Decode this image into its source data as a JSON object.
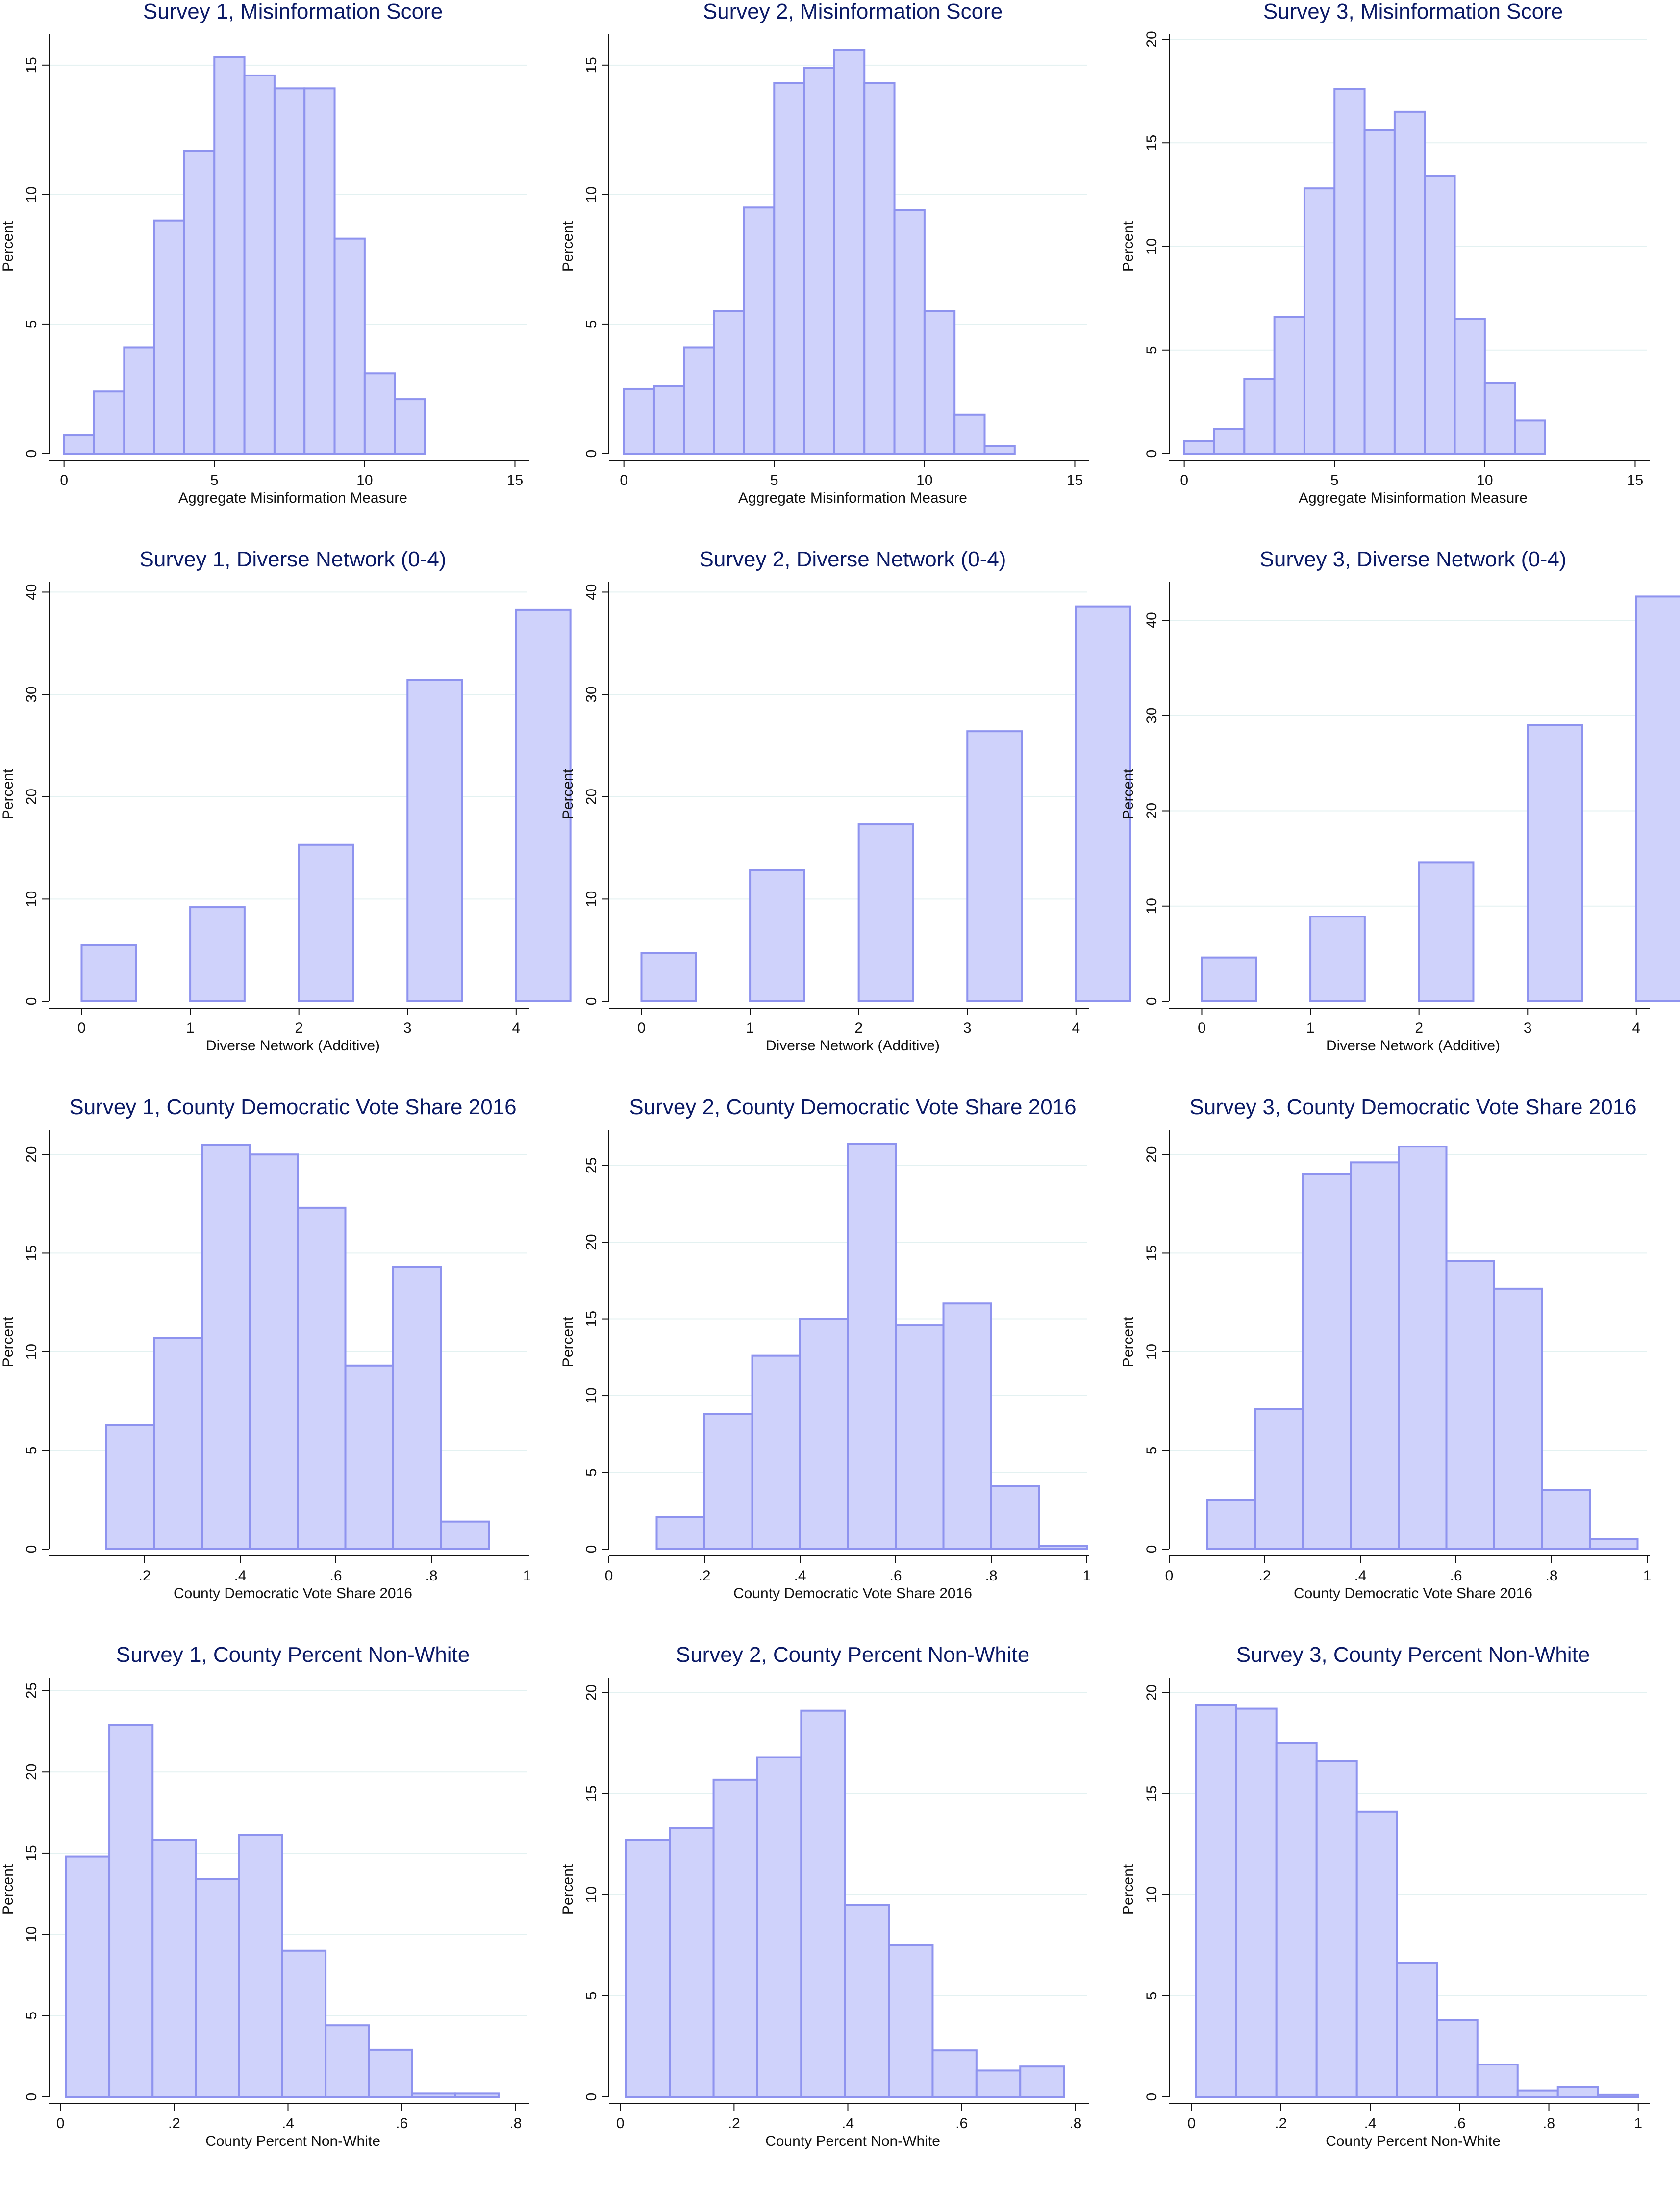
{
  "chart_data": [
    {
      "id": "s1-mis",
      "type": "bar",
      "title": "Survey 1, Misinformation Score",
      "xlabel": "Aggregate Misinformation Measure",
      "ylabel": "Percent",
      "xlim": [
        -0.5,
        15.4
      ],
      "ylim": [
        0,
        16
      ],
      "xticks": [
        0,
        5,
        10,
        15
      ],
      "xtick_labels": [
        "0",
        "5",
        "10",
        "15"
      ],
      "yticks": [
        0,
        5,
        10,
        15
      ],
      "ytick_labels": [
        "0",
        "5",
        "10",
        "15"
      ],
      "bin_edges": [
        0,
        1,
        2,
        3,
        4,
        5,
        6,
        7,
        8,
        9,
        10,
        11,
        12
      ],
      "values": [
        0.7,
        2.4,
        4.1,
        9.0,
        11.7,
        15.3,
        14.6,
        14.1,
        14.1,
        8.3,
        3.1,
        2.1
      ]
    },
    {
      "id": "s2-mis",
      "type": "bar",
      "title": "Survey 2, Misinformation Score",
      "xlabel": "Aggregate Misinformation Measure",
      "ylabel": "Percent",
      "xlim": [
        -0.5,
        15.4
      ],
      "ylim": [
        0,
        16
      ],
      "xticks": [
        0,
        5,
        10,
        15
      ],
      "xtick_labels": [
        "0",
        "5",
        "10",
        "15"
      ],
      "yticks": [
        0,
        5,
        10,
        15
      ],
      "ytick_labels": [
        "0",
        "5",
        "10",
        "15"
      ],
      "bin_edges": [
        0,
        1,
        2,
        3,
        4,
        5,
        6,
        7,
        8,
        9,
        10,
        11,
        12,
        13
      ],
      "values": [
        2.5,
        2.6,
        4.1,
        5.5,
        9.5,
        14.3,
        14.9,
        15.6,
        14.3,
        9.4,
        5.5,
        1.5,
        0.3
      ]
    },
    {
      "id": "s3-mis",
      "type": "bar",
      "title": "Survey 3, Misinformation Score",
      "xlabel": "Aggregate Misinformation Measure",
      "ylabel": "Percent",
      "xlim": [
        -0.5,
        15.4
      ],
      "ylim": [
        0,
        20
      ],
      "xticks": [
        0,
        5,
        10,
        15
      ],
      "xtick_labels": [
        "0",
        "5",
        "10",
        "15"
      ],
      "yticks": [
        0,
        5,
        10,
        15,
        20
      ],
      "ytick_labels": [
        "0",
        "5",
        "10",
        "15",
        "20"
      ],
      "bin_edges": [
        0,
        1,
        2,
        3,
        4,
        5,
        6,
        7,
        8,
        9,
        10,
        11,
        12
      ],
      "values": [
        0.6,
        1.2,
        3.6,
        6.6,
        12.8,
        17.6,
        15.6,
        16.5,
        13.4,
        6.5,
        3.4,
        1.6
      ]
    },
    {
      "id": "s1-net",
      "type": "bar",
      "title": "Survey 1, Diverse Network (0-4)",
      "xlabel": "Diverse Network (Additive)",
      "ylabel": "Percent",
      "xlim": [
        -0.3,
        4.1
      ],
      "ylim": [
        0,
        40.5
      ],
      "xticks": [
        0,
        1,
        2,
        3,
        4
      ],
      "xtick_labels": [
        "0",
        "1",
        "2",
        "3",
        "4"
      ],
      "yticks": [
        0,
        10,
        20,
        30,
        40
      ],
      "ytick_labels": [
        "0",
        "10",
        "20",
        "30",
        "40"
      ],
      "bars": [
        {
          "x0": 0,
          "x1": 0.5,
          "v": 5.5
        },
        {
          "x0": 1,
          "x1": 1.5,
          "v": 9.2
        },
        {
          "x0": 2,
          "x1": 2.5,
          "v": 15.3
        },
        {
          "x0": 3,
          "x1": 3.5,
          "v": 31.4
        },
        {
          "x0": 4,
          "x1": 4.5,
          "v": 38.3
        }
      ]
    },
    {
      "id": "s2-net",
      "type": "bar",
      "title": "Survey 2, Diverse Network (0-4)",
      "xlabel": "Diverse Network (Additive)",
      "ylabel": "Percent",
      "xlim": [
        -0.3,
        4.1
      ],
      "ylim": [
        0,
        40.5
      ],
      "xticks": [
        0,
        1,
        2,
        3,
        4
      ],
      "xtick_labels": [
        "0",
        "1",
        "2",
        "3",
        "4"
      ],
      "yticks": [
        0,
        10,
        20,
        30,
        40
      ],
      "ytick_labels": [
        "0",
        "10",
        "20",
        "30",
        "40"
      ],
      "bars": [
        {
          "x0": 0,
          "x1": 0.5,
          "v": 4.7
        },
        {
          "x0": 1,
          "x1": 1.5,
          "v": 12.8
        },
        {
          "x0": 2,
          "x1": 2.5,
          "v": 17.3
        },
        {
          "x0": 3,
          "x1": 3.5,
          "v": 26.4
        },
        {
          "x0": 4,
          "x1": 4.5,
          "v": 38.6
        }
      ]
    },
    {
      "id": "s3-net",
      "type": "bar",
      "title": "Survey 3, Diverse Network (0-4)",
      "xlabel": "Diverse Network (Additive)",
      "ylabel": "Percent",
      "xlim": [
        -0.3,
        4.1
      ],
      "ylim": [
        0,
        43.5
      ],
      "xticks": [
        0,
        1,
        2,
        3,
        4
      ],
      "xtick_labels": [
        "0",
        "1",
        "2",
        "3",
        "4"
      ],
      "yticks": [
        0,
        10,
        20,
        30,
        40
      ],
      "ytick_labels": [
        "0",
        "10",
        "20",
        "30",
        "40"
      ],
      "bars": [
        {
          "x0": 0,
          "x1": 0.5,
          "v": 4.6
        },
        {
          "x0": 1,
          "x1": 1.5,
          "v": 8.9
        },
        {
          "x0": 2,
          "x1": 2.5,
          "v": 14.6
        },
        {
          "x0": 3,
          "x1": 3.5,
          "v": 29.0
        },
        {
          "x0": 4,
          "x1": 4.5,
          "v": 42.5
        }
      ]
    },
    {
      "id": "s1-dem",
      "type": "bar",
      "title": "Survey 1, County Democratic Vote Share 2016",
      "xlabel": "County Democratic Vote Share 2016",
      "ylabel": "Percent",
      "xlim": [
        0,
        1.0
      ],
      "ylim": [
        0,
        21
      ],
      "xticks": [
        0.2,
        0.4,
        0.6,
        0.8,
        1.0
      ],
      "xtick_labels": [
        ".2",
        ".4",
        ".6",
        ".8",
        "1"
      ],
      "yticks": [
        0,
        5,
        10,
        15,
        20
      ],
      "ytick_labels": [
        "0",
        "5",
        "10",
        "15",
        "20"
      ],
      "bin_edges": [
        0.12,
        0.22,
        0.32,
        0.42,
        0.52,
        0.62,
        0.72,
        0.82,
        0.92
      ],
      "values": [
        6.3,
        10.7,
        20.5,
        20.0,
        17.3,
        9.3,
        14.3,
        1.4
      ]
    },
    {
      "id": "s2-dem",
      "type": "bar",
      "title": "Survey 2, County Democratic Vote Share 2016",
      "xlabel": "County Democratic Vote Share 2016",
      "ylabel": "Percent",
      "xlim": [
        0,
        1.0
      ],
      "ylim": [
        0,
        27
      ],
      "xticks": [
        0,
        0.2,
        0.4,
        0.6,
        0.8,
        1.0
      ],
      "xtick_labels": [
        "0",
        ".2",
        ".4",
        ".6",
        ".8",
        "1"
      ],
      "yticks": [
        0,
        5,
        10,
        15,
        20,
        25
      ],
      "ytick_labels": [
        "0",
        "5",
        "10",
        "15",
        "20",
        "25"
      ],
      "bin_edges": [
        0.1,
        0.2,
        0.3,
        0.4,
        0.5,
        0.6,
        0.7,
        0.8,
        0.9,
        1.0
      ],
      "values": [
        2.1,
        8.8,
        12.6,
        15.0,
        26.4,
        14.6,
        16.0,
        4.1,
        0.2
      ]
    },
    {
      "id": "s3-dem",
      "type": "bar",
      "title": "Survey 3, County Democratic Vote Share 2016",
      "xlabel": "County Democratic Vote Share 2016",
      "ylabel": "Percent",
      "xlim": [
        0,
        1.0
      ],
      "ylim": [
        0,
        21
      ],
      "xticks": [
        0,
        0.2,
        0.4,
        0.6,
        0.8,
        1.0
      ],
      "xtick_labels": [
        "0",
        ".2",
        ".4",
        ".6",
        ".8",
        "1"
      ],
      "yticks": [
        0,
        5,
        10,
        15,
        20
      ],
      "ytick_labels": [
        "0",
        "5",
        "10",
        "15",
        "20"
      ],
      "bin_edges": [
        0.08,
        0.18,
        0.28,
        0.38,
        0.48,
        0.58,
        0.68,
        0.78,
        0.88,
        0.98
      ],
      "values": [
        2.5,
        7.1,
        19.0,
        19.6,
        20.4,
        14.6,
        13.2,
        3.0,
        0.5
      ]
    },
    {
      "id": "s1-nw",
      "type": "bar",
      "title": "Survey 1, County Percent Non-White",
      "xlabel": "County Percent Non-White",
      "ylabel": "Percent",
      "xlim": [
        -0.02,
        0.82
      ],
      "ylim": [
        0,
        25.5
      ],
      "xticks": [
        0,
        0.2,
        0.4,
        0.6,
        0.8
      ],
      "xtick_labels": [
        "0",
        ".2",
        ".4",
        ".6",
        ".8"
      ],
      "yticks": [
        0,
        5,
        10,
        15,
        20,
        25
      ],
      "ytick_labels": [
        "0",
        "5",
        "10",
        "15",
        "20",
        "25"
      ],
      "bin_edges": [
        0.01,
        0.086,
        0.162,
        0.238,
        0.314,
        0.39,
        0.466,
        0.542,
        0.618,
        0.694,
        0.77
      ],
      "values": [
        14.8,
        22.9,
        15.8,
        13.4,
        16.1,
        9.0,
        4.4,
        2.9,
        0.2,
        0.2
      ]
    },
    {
      "id": "s2-nw",
      "type": "bar",
      "title": "Survey 2, County Percent Non-White",
      "xlabel": "County Percent Non-White",
      "ylabel": "Percent",
      "xlim": [
        -0.02,
        0.82
      ],
      "ylim": [
        0,
        20.5
      ],
      "xticks": [
        0,
        0.2,
        0.4,
        0.6,
        0.8
      ],
      "xtick_labels": [
        "0",
        ".2",
        ".4",
        ".6",
        ".8"
      ],
      "yticks": [
        0,
        5,
        10,
        15,
        20
      ],
      "ytick_labels": [
        "0",
        "5",
        "10",
        "15",
        "20"
      ],
      "bin_edges": [
        0.01,
        0.087,
        0.164,
        0.241,
        0.318,
        0.395,
        0.472,
        0.549,
        0.626,
        0.703,
        0.78
      ],
      "values": [
        12.7,
        13.3,
        15.7,
        16.8,
        19.1,
        9.5,
        7.5,
        2.3,
        1.3,
        1.5
      ]
    },
    {
      "id": "s3-nw",
      "type": "bar",
      "title": "Survey 3, County Percent Non-White",
      "xlabel": "County Percent Non-White",
      "ylabel": "Percent",
      "xlim": [
        -0.05,
        1.02
      ],
      "ylim": [
        0,
        20.5
      ],
      "xticks": [
        0,
        0.2,
        0.4,
        0.6,
        0.8,
        1.0
      ],
      "xtick_labels": [
        "0",
        ".2",
        ".4",
        ".6",
        ".8",
        "1"
      ],
      "yticks": [
        0,
        5,
        10,
        15,
        20
      ],
      "ytick_labels": [
        "0",
        "5",
        "10",
        "15",
        "20"
      ],
      "bin_edges": [
        0.01,
        0.1,
        0.19,
        0.28,
        0.37,
        0.46,
        0.55,
        0.64,
        0.73,
        0.82,
        0.91,
        1.0
      ],
      "values": [
        19.4,
        19.2,
        17.5,
        16.6,
        14.1,
        6.6,
        3.8,
        1.6,
        0.3,
        0.5,
        0.1
      ]
    }
  ]
}
